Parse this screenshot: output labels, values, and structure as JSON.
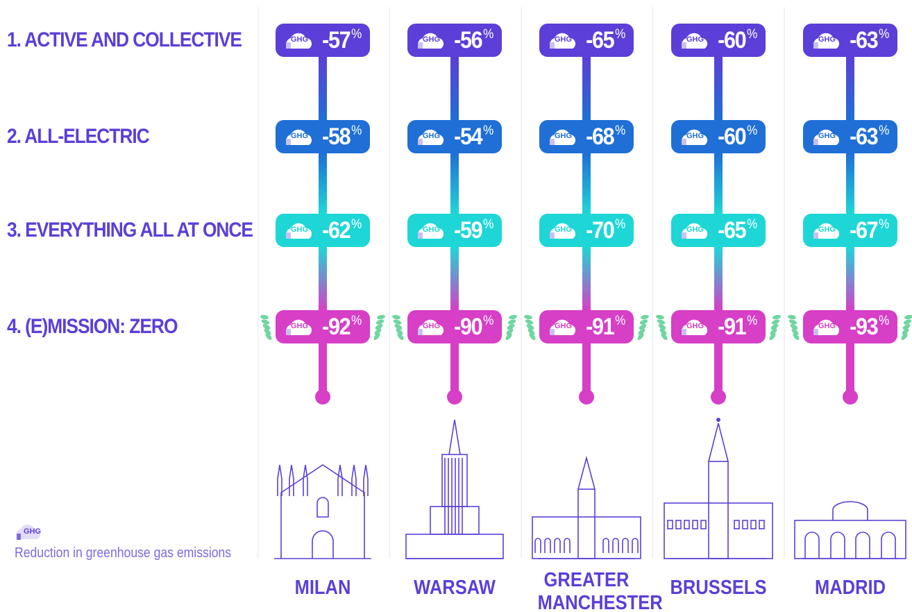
{
  "scenarios": [
    "1. ACTIVE AND COLLECTIVE",
    "2. ALL-ELECTRIC",
    "3. EVERYTHING ALL AT ONCE",
    "4. (E)MISSION: ZERO"
  ],
  "cities": [
    "MILAN",
    "WARSAW",
    "GREATER MANCHESTER",
    "BRUSSELS",
    "MADRID"
  ],
  "reductions": [
    [
      "-57",
      "-56",
      "-65",
      "-60",
      "-63"
    ],
    [
      "-58",
      "-54",
      "-68",
      "-60",
      "-63"
    ],
    [
      "-62",
      "-59",
      "-70",
      "-65",
      "-67"
    ],
    [
      "-92",
      "-90",
      "-91",
      "-91",
      "-93"
    ]
  ],
  "unit": "%",
  "badge_label": "GHG",
  "legend": {
    "label": "GHG",
    "text": "Reduction in greenhouse gas emissions"
  }
}
